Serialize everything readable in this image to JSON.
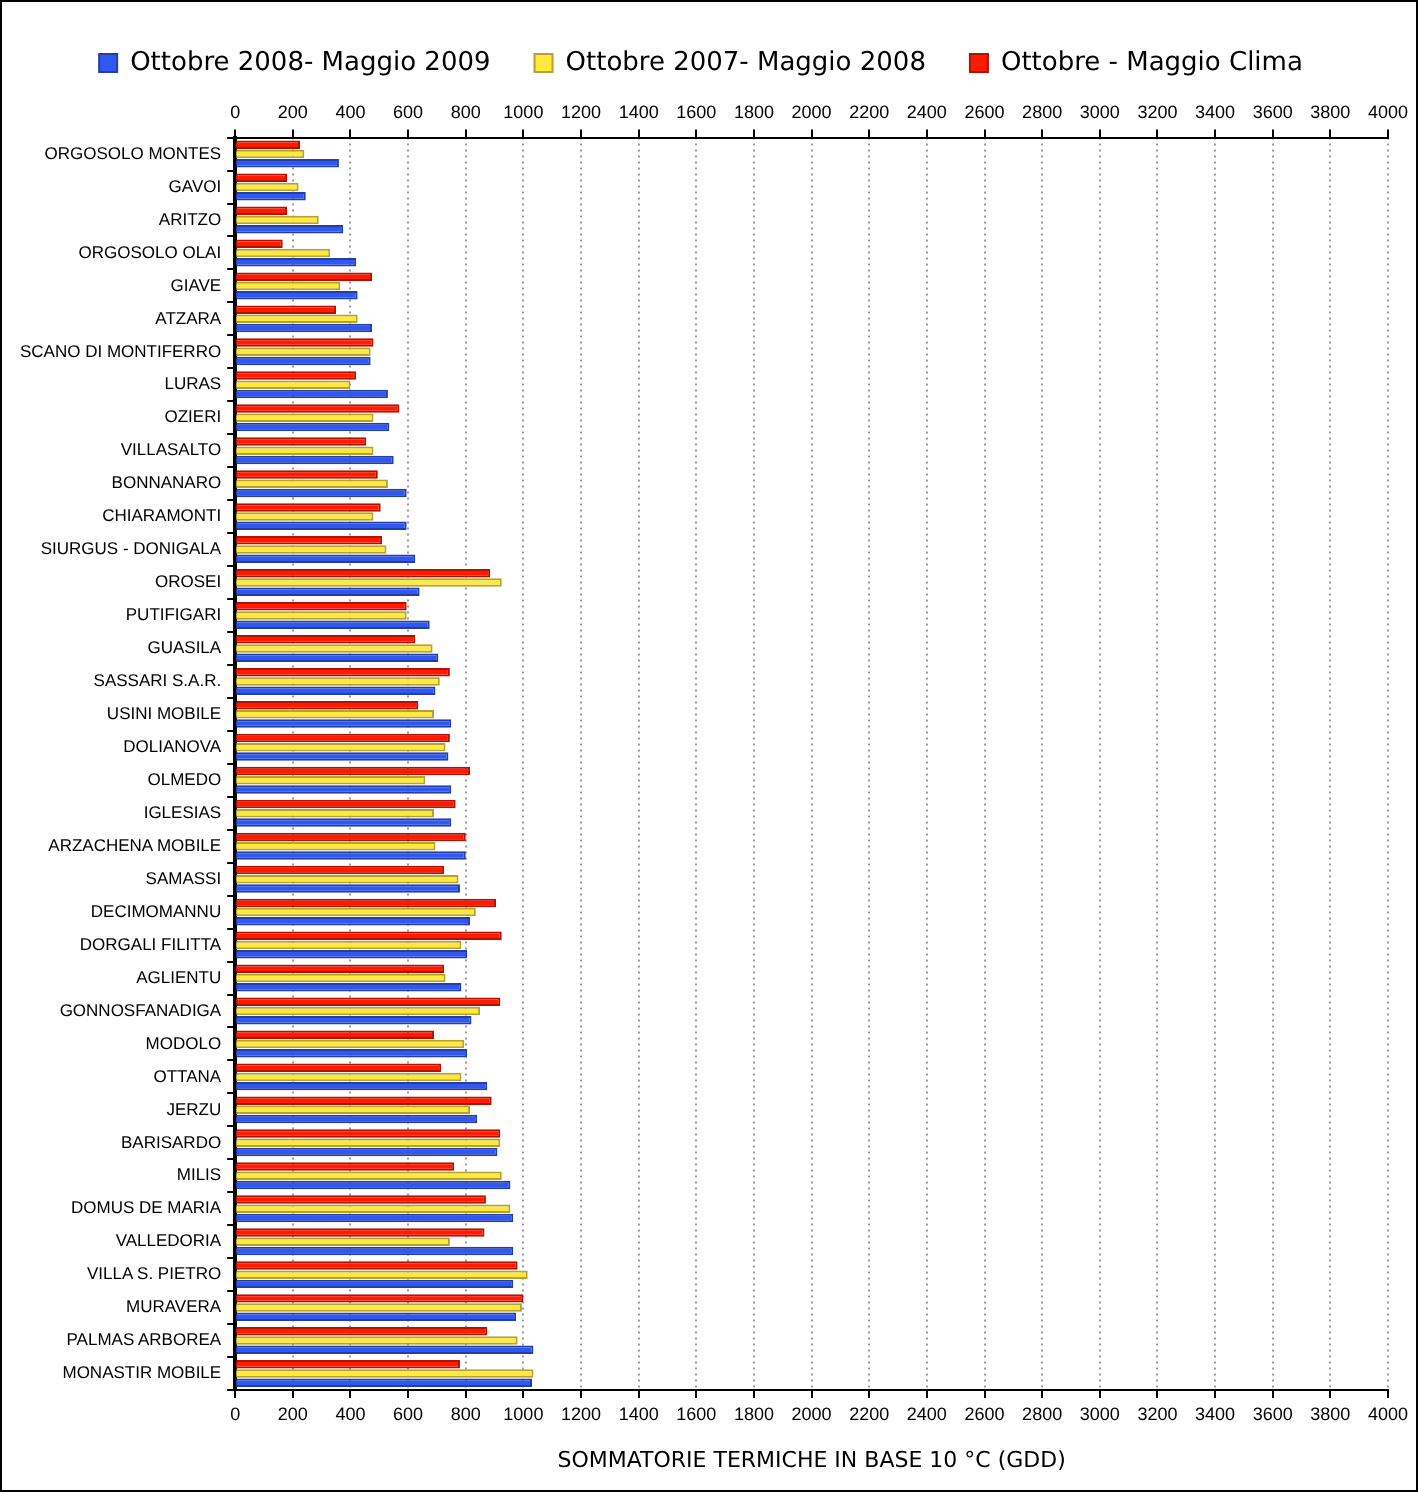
{
  "chart_data": {
    "type": "bar",
    "orientation": "horizontal",
    "categories": [
      "ORGOSOLO MONTES",
      "GAVOI",
      "ARITZO",
      "ORGOSOLO OLAI",
      "GIAVE",
      "ATZARA",
      "SCANO DI MONTIFERRO",
      "LURAS",
      "OZIERI",
      "VILLASALTO",
      "BONNANARO",
      "CHIARAMONTI",
      "SIURGUS - DONIGALA",
      "OROSEI",
      "PUTIFIGARI",
      "GUASILA",
      "SASSARI S.A.R.",
      "USINI MOBILE",
      "DOLIANOVA",
      "OLMEDO",
      "IGLESIAS",
      "ARZACHENA MOBILE",
      "SAMASSI",
      "DECIMOMANNU",
      "DORGALI FILITTA",
      "AGLIENTU",
      "GONNOSFANADIGA",
      "MODOLO",
      "OTTANA",
      "JERZU",
      "BARISARDO",
      "MILIS",
      "DOMUS DE MARIA",
      "VALLEDORIA",
      "VILLA S. PIETRO",
      "MURAVERA",
      "PALMAS ARBOREA",
      "MONASTIR MOBILE"
    ],
    "series": [
      {
        "name": "Ottobre 2008- Maggio 2009",
        "color": "#3058f0",
        "values": [
          360,
          245,
          375,
          420,
          425,
          475,
          470,
          530,
          535,
          550,
          595,
          595,
          625,
          640,
          675,
          705,
          695,
          750,
          740,
          750,
          750,
          800,
          780,
          815,
          805,
          785,
          820,
          805,
          875,
          840,
          910,
          955,
          965,
          965,
          965,
          975,
          1035,
          1030
        ]
      },
      {
        "name": "Ottobre 2007- Maggio 2008",
        "color": "#ffe840",
        "values": [
          240,
          220,
          290,
          330,
          365,
          425,
          470,
          400,
          480,
          480,
          530,
          480,
          525,
          925,
          595,
          685,
          710,
          690,
          730,
          660,
          690,
          695,
          775,
          835,
          785,
          730,
          850,
          795,
          785,
          815,
          920,
          925,
          955,
          745,
          1015,
          995,
          980,
          1035
        ]
      },
      {
        "name": "Ottobre - Maggio Clima",
        "color": "#ff1a00",
        "values": [
          225,
          180,
          180,
          165,
          475,
          350,
          480,
          420,
          570,
          455,
          495,
          505,
          510,
          885,
          595,
          625,
          745,
          635,
          745,
          815,
          765,
          800,
          725,
          905,
          925,
          725,
          920,
          690,
          715,
          890,
          920,
          760,
          870,
          865,
          980,
          1000,
          875,
          780
        ]
      }
    ],
    "xlim": [
      0,
      4000
    ],
    "xticks": [
      0,
      200,
      400,
      600,
      800,
      1000,
      1200,
      1400,
      1600,
      1800,
      2000,
      2200,
      2400,
      2600,
      2800,
      3000,
      3200,
      3400,
      3600,
      3800,
      4000
    ],
    "x2lim": [
      0,
      4000
    ],
    "x2ticks": [
      0,
      200,
      400,
      600,
      800,
      1000,
      1200,
      1400,
      1600,
      1800,
      2000,
      2200,
      2400,
      2600,
      2800,
      3000,
      3200,
      3400,
      3600,
      3800,
      4000
    ],
    "xlabel": "SOMMATORIE TERMICHE IN BASE 10 °C (GDD)",
    "grid": "x",
    "legend": "top"
  }
}
